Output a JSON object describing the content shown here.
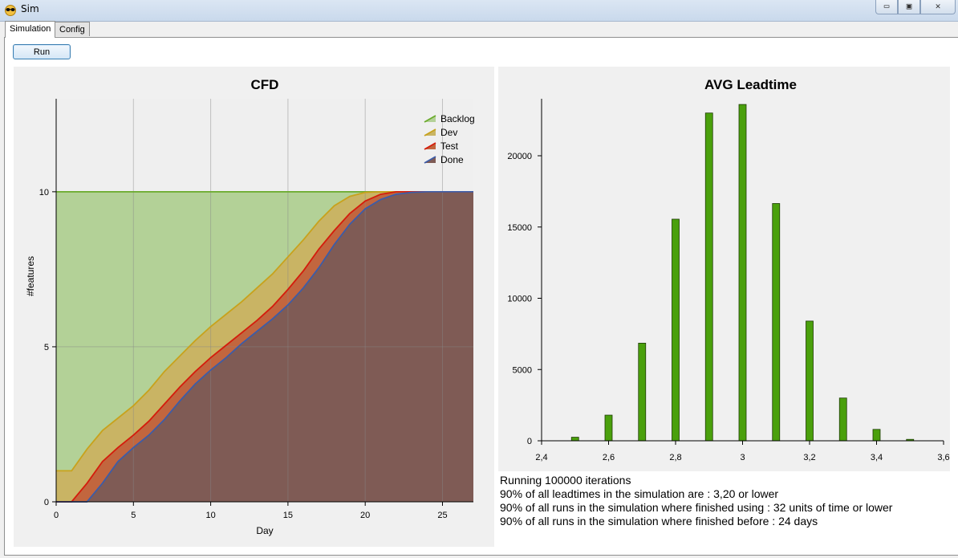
{
  "window": {
    "title": "Sim",
    "controls": {
      "minimize": "▭",
      "maximize": "▣",
      "close": "✕"
    }
  },
  "tabs": [
    {
      "label": "Simulation",
      "active": true
    },
    {
      "label": "Config",
      "active": false
    }
  ],
  "toolbar": {
    "run_label": "Run"
  },
  "output_lines": [
    "Running 100000 iterations",
    "90% of all leadtimes in the simulation are : 3,20 or lower",
    "90% of all runs in the simulation where finished using : 32 units of time or lower",
    "90% of all runs in the simulation where finished before : 24 days"
  ],
  "chart_data": [
    {
      "type": "area",
      "title": "CFD",
      "xlabel": "Day",
      "ylabel": "#features",
      "xlim": [
        0,
        27
      ],
      "ylim": [
        0,
        13
      ],
      "xticks": [
        0,
        5,
        10,
        15,
        20,
        25
      ],
      "yticks": [
        0,
        5,
        10
      ],
      "grid": true,
      "legend_position": "top-right",
      "x": [
        0,
        1,
        2,
        3,
        4,
        5,
        6,
        7,
        8,
        9,
        10,
        11,
        12,
        13,
        14,
        15,
        16,
        17,
        18,
        19,
        20,
        21,
        22,
        23,
        24,
        25,
        26,
        27
      ],
      "series": [
        {
          "name": "Backlog",
          "color": "#6aaa2c",
          "fill": "#b3d197",
          "values": [
            10,
            10,
            10,
            10,
            10,
            10,
            10,
            10,
            10,
            10,
            10,
            10,
            10,
            10,
            10,
            10,
            10,
            10,
            10,
            10,
            10,
            10,
            10,
            10,
            10,
            10,
            10,
            10
          ]
        },
        {
          "name": "Dev",
          "color": "#c8a21c",
          "fill": "#c9b464",
          "values": [
            1,
            1,
            1.7,
            2.3,
            2.7,
            3.1,
            3.6,
            4.2,
            4.7,
            5.2,
            5.65,
            6.05,
            6.45,
            6.9,
            7.35,
            7.9,
            8.45,
            9.05,
            9.55,
            9.85,
            9.98,
            10,
            10,
            10,
            10,
            10,
            10,
            10
          ]
        },
        {
          "name": "Test",
          "color": "#d41c0c",
          "fill": "#c2663e",
          "values": [
            0,
            0,
            0.6,
            1.3,
            1.75,
            2.15,
            2.6,
            3.15,
            3.7,
            4.2,
            4.65,
            5.05,
            5.45,
            5.85,
            6.3,
            6.85,
            7.45,
            8.15,
            8.75,
            9.3,
            9.7,
            9.92,
            10,
            10,
            10,
            10,
            10,
            10
          ]
        },
        {
          "name": "Done",
          "color": "#3c5ca8",
          "fill": "#7f5b55",
          "values": [
            0,
            0,
            0,
            0.6,
            1.3,
            1.75,
            2.15,
            2.65,
            3.25,
            3.8,
            4.25,
            4.65,
            5.1,
            5.5,
            5.9,
            6.35,
            6.9,
            7.55,
            8.3,
            8.95,
            9.45,
            9.75,
            9.92,
            9.98,
            10,
            10,
            10,
            10
          ]
        }
      ]
    },
    {
      "type": "bar",
      "title": "AVG Leadtime",
      "xlabel": "",
      "ylabel": "",
      "xlim": [
        2.4,
        3.6
      ],
      "ylim": [
        0,
        24000
      ],
      "xticks": [
        "2,4",
        "2,6",
        "2,8",
        "3",
        "3,2",
        "3,4",
        "3,6"
      ],
      "yticks": [
        0,
        5000,
        10000,
        15000,
        20000
      ],
      "grid": false,
      "bar_color": "#4aa00c",
      "x": [
        2.5,
        2.6,
        2.7,
        2.8,
        2.9,
        3.0,
        3.1,
        3.2,
        3.3,
        3.4,
        3.5
      ],
      "values": [
        250,
        1800,
        6850,
        15550,
        23000,
        23600,
        16650,
        8400,
        3000,
        800,
        100
      ]
    }
  ]
}
